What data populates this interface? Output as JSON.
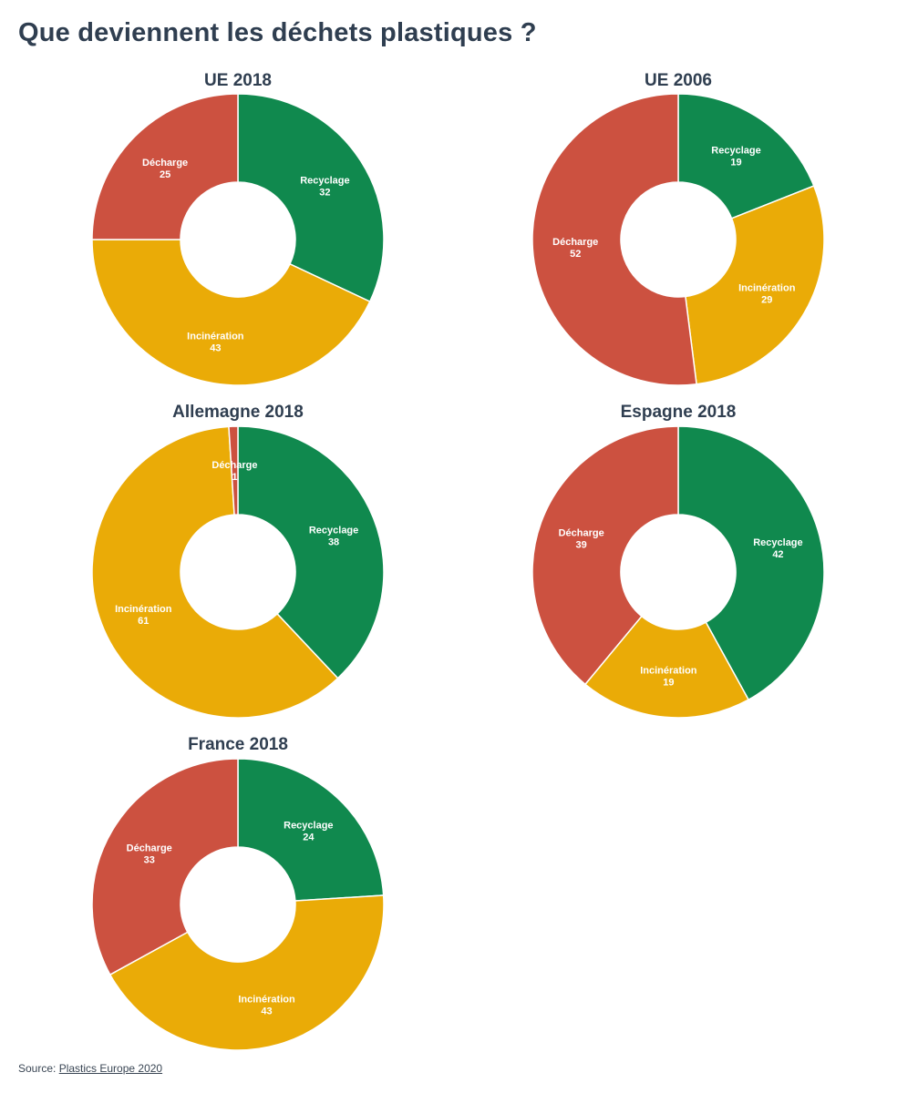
{
  "page": {
    "title": "Que deviennent les déchets plastiques ?"
  },
  "source": {
    "prefix": "Source:",
    "link_text": "Plastics Europe 2020"
  },
  "colors": {
    "Recyclage": "#10894e",
    "Incinération": "#eaab07",
    "Décharge": "#cc5140"
  },
  "chart_data": [
    {
      "type": "pie",
      "title": "UE 2018",
      "slices": [
        {
          "label": "Recyclage",
          "value": 32
        },
        {
          "label": "Incinération",
          "value": 43
        },
        {
          "label": "Décharge",
          "value": 25
        }
      ]
    },
    {
      "type": "pie",
      "title": "UE 2006",
      "slices": [
        {
          "label": "Recyclage",
          "value": 19
        },
        {
          "label": "Incinération",
          "value": 29
        },
        {
          "label": "Décharge",
          "value": 52
        }
      ]
    },
    {
      "type": "pie",
      "title": "Allemagne 2018",
      "slices": [
        {
          "label": "Recyclage",
          "value": 38
        },
        {
          "label": "Incinération",
          "value": 61
        },
        {
          "label": "Décharge",
          "value": 1
        }
      ]
    },
    {
      "type": "pie",
      "title": "Espagne 2018",
      "slices": [
        {
          "label": "Recyclage",
          "value": 42
        },
        {
          "label": "Incinération",
          "value": 19
        },
        {
          "label": "Décharge",
          "value": 39
        }
      ]
    },
    {
      "type": "pie",
      "title": "France 2018",
      "slices": [
        {
          "label": "Recyclage",
          "value": 24
        },
        {
          "label": "Incinération",
          "value": 43
        },
        {
          "label": "Décharge",
          "value": 33
        }
      ]
    }
  ]
}
